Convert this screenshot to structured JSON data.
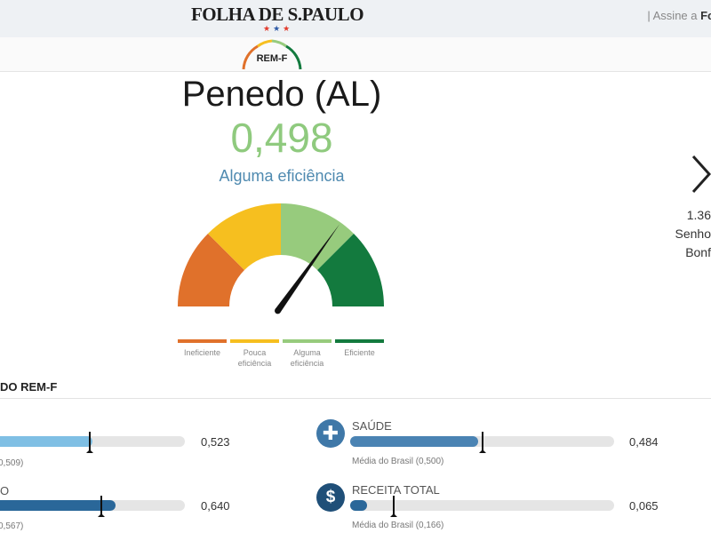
{
  "header": {
    "brand": "FOLHA DE S.PAULO",
    "subscribe_link": "| Assine a ",
    "subscribe_link_bold": "Fo"
  },
  "badge": {
    "label": "REM-F"
  },
  "city": {
    "name": "Penedo (AL)",
    "score": "0,498",
    "classification": "Alguma eficiência"
  },
  "gauge": {
    "segments": [
      {
        "label_line1": "Ineficiente",
        "label_line2": "",
        "color": "#e0712b"
      },
      {
        "label_line1": "Pouca",
        "label_line2": "eficiência",
        "color": "#f6bf1f"
      },
      {
        "label_line1": "Alguma",
        "label_line2": "eficiência",
        "color": "#97cb7d"
      },
      {
        "label_line1": "Eficiente",
        "label_line2": "",
        "color": "#137a3e"
      }
    ],
    "needle_value": 0.498
  },
  "next_city": {
    "rank": "1.36",
    "name_line1": "Senho",
    "name_line2": "Bonf"
  },
  "section": {
    "title": "DO REM-F"
  },
  "metrics": [
    {
      "label": "",
      "value": "0,523",
      "fill_fraction": 0.523,
      "avg_text": "0,509)",
      "avg_fraction": 0.509,
      "fill_color": "#7fbfe4"
    },
    {
      "label": "O",
      "value": "0,640",
      "fill_fraction": 0.64,
      "avg_text": "0,567)",
      "avg_fraction": 0.567,
      "fill_color": "#2a6799"
    },
    {
      "label": "SAÚDE",
      "value": "0,484",
      "fill_fraction": 0.484,
      "avg_text": "Média do Brasil (0,500)",
      "avg_fraction": 0.5,
      "fill_color": "#4a83b3",
      "icon": "plus-icon",
      "icon_glyph": "✚"
    },
    {
      "label": "RECEITA TOTAL",
      "value": "0,065",
      "fill_fraction": 0.065,
      "avg_text": "Média do Brasil (0,166)",
      "avg_fraction": 0.166,
      "fill_color": "#2a6799",
      "icon": "dollar-icon",
      "icon_glyph": "$"
    }
  ]
}
